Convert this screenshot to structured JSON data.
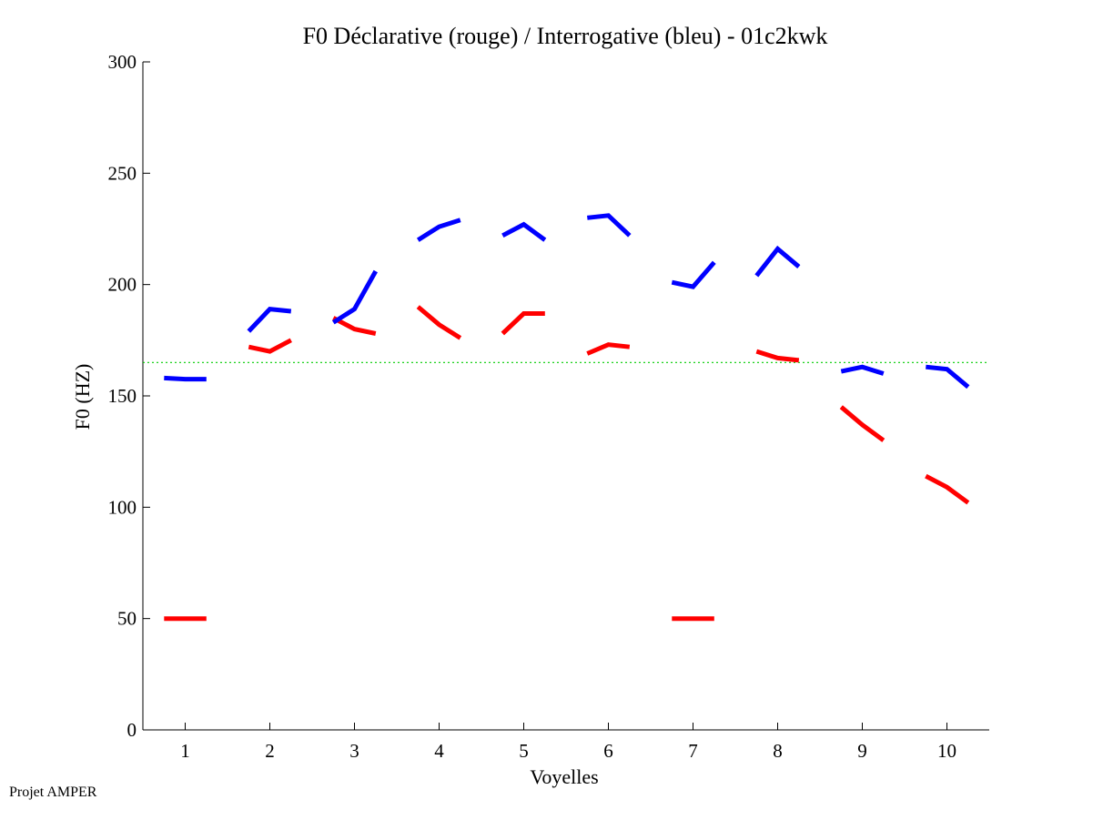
{
  "chart_data": {
    "type": "line",
    "title": "F0 Déclarative (rouge) / Interrogative (bleu) - 01c2kwk",
    "xlabel": "Voyelles",
    "ylabel": "F0 (HZ)",
    "xlim": [
      0.5,
      10.5
    ],
    "ylim": [
      0,
      300
    ],
    "xticks": [
      "1",
      "2",
      "3",
      "4",
      "5",
      "6",
      "7",
      "8",
      "9",
      "10"
    ],
    "yticks": [
      "0",
      "50",
      "100",
      "150",
      "200",
      "250",
      "300"
    ],
    "reference_line": {
      "y": 165,
      "color": "#00cc00",
      "style": "dotted"
    },
    "grid": false,
    "series": [
      {
        "color": "#ff0000",
        "segments": [
          [
            [
              0.75,
              50
            ],
            [
              1.25,
              50
            ]
          ],
          [
            [
              1.75,
              172
            ],
            [
              2.0,
              170
            ],
            [
              2.25,
              175
            ]
          ],
          [
            [
              2.75,
              185
            ],
            [
              3.0,
              180
            ],
            [
              3.25,
              178
            ]
          ],
          [
            [
              3.75,
              190
            ],
            [
              4.0,
              182
            ],
            [
              4.25,
              176
            ]
          ],
          [
            [
              4.75,
              178
            ],
            [
              5.0,
              187
            ],
            [
              5.25,
              187
            ]
          ],
          [
            [
              5.75,
              169
            ],
            [
              6.0,
              173
            ],
            [
              6.25,
              172
            ]
          ],
          [
            [
              6.75,
              50
            ],
            [
              7.25,
              50
            ]
          ],
          [
            [
              7.75,
              170
            ],
            [
              8.0,
              167
            ],
            [
              8.25,
              166
            ]
          ],
          [
            [
              8.75,
              145
            ],
            [
              9.0,
              137
            ],
            [
              9.25,
              130
            ]
          ],
          [
            [
              9.75,
              114
            ],
            [
              10.0,
              109
            ],
            [
              10.25,
              102
            ]
          ]
        ]
      },
      {
        "color": "#0000ff",
        "segments": [
          [
            [
              0.75,
              158
            ],
            [
              1.0,
              157.5
            ],
            [
              1.25,
              157.5
            ]
          ],
          [
            [
              1.75,
              179
            ],
            [
              2.0,
              189
            ],
            [
              2.25,
              188
            ]
          ],
          [
            [
              2.75,
              183
            ],
            [
              3.0,
              189
            ],
            [
              3.25,
              206
            ]
          ],
          [
            [
              3.75,
              220
            ],
            [
              4.0,
              226
            ],
            [
              4.25,
              229
            ]
          ],
          [
            [
              4.75,
              222
            ],
            [
              5.0,
              227
            ],
            [
              5.25,
              220
            ]
          ],
          [
            [
              5.75,
              230
            ],
            [
              6.0,
              231
            ],
            [
              6.25,
              222
            ]
          ],
          [
            [
              6.75,
              201
            ],
            [
              7.0,
              199
            ],
            [
              7.25,
              210
            ]
          ],
          [
            [
              7.75,
              204
            ],
            [
              8.0,
              216
            ],
            [
              8.25,
              208
            ]
          ],
          [
            [
              8.75,
              161
            ],
            [
              9.0,
              163
            ],
            [
              9.25,
              160
            ]
          ],
          [
            [
              9.75,
              163
            ],
            [
              10.0,
              162
            ],
            [
              10.25,
              154
            ]
          ]
        ]
      }
    ]
  },
  "footer": {
    "text": "Projet AMPER"
  }
}
